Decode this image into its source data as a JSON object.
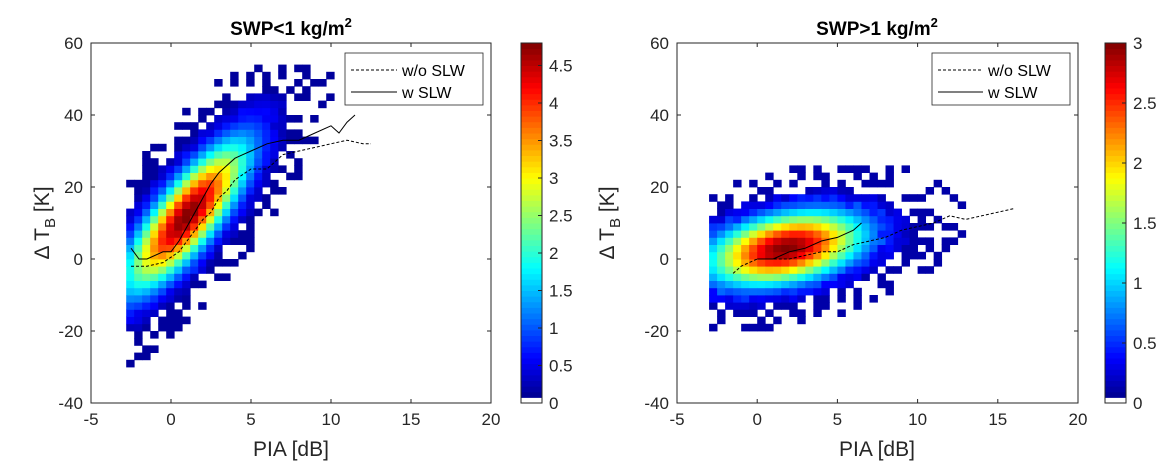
{
  "chart_data": [
    {
      "type": "heatmap",
      "title": "SWP<1 kg/m",
      "title_sup": "2",
      "xlabel": "PIA [dB]",
      "ylabel_delta": "Δ T",
      "ylabel_sub": "B",
      "ylabel_unit": " [K]",
      "xlim": [
        -5,
        20
      ],
      "ylim": [
        -40,
        60
      ],
      "xticks": [
        "-5",
        "0",
        "5",
        "10",
        "15",
        "20"
      ],
      "yticks": [
        "-40",
        "-20",
        "0",
        "20",
        "40",
        "60"
      ],
      "colorbar": {
        "min": 0,
        "max": 4.8,
        "ticks": [
          "0",
          "0.5",
          "1",
          "1.5",
          "2",
          "2.5",
          "3",
          "3.5",
          "4",
          "4.5"
        ],
        "tick_values": [
          0,
          0.5,
          1,
          1.5,
          2,
          2.5,
          3,
          3.5,
          4,
          4.5
        ],
        "colormap": "jet"
      },
      "legend": {
        "position": "top-right",
        "entries": [
          "w/o SLW",
          "w SLW"
        ]
      },
      "density_model": {
        "cx": 1.0,
        "cy": 12,
        "sx": 2.6,
        "sy": 14,
        "rho": 0.8,
        "peak": 4.8,
        "x_range": [
          -2.8,
          19.5
        ],
        "y_range": [
          -30,
          53
        ],
        "cut": 0.22
      },
      "series": [
        {
          "name": "w/o SLW",
          "style": "dashed",
          "x": [
            -2.5,
            -1.5,
            -0.5,
            0.5,
            1.0,
            1.5,
            2.0,
            2.5,
            3.0,
            3.5,
            4.0,
            5.0,
            6.0,
            7.0,
            8.0,
            9.0,
            10.0,
            11.0,
            12.0,
            12.5
          ],
          "y": [
            -2,
            -2,
            -1,
            2,
            5,
            8,
            11,
            13,
            17,
            19,
            22,
            25,
            25,
            29,
            30,
            31,
            32,
            33,
            32,
            32
          ]
        },
        {
          "name": "w SLW",
          "style": "solid",
          "x": [
            -2.5,
            -2.0,
            -1.5,
            -0.5,
            0.0,
            0.5,
            1.0,
            1.5,
            2.0,
            2.5,
            3.0,
            3.5,
            4.0,
            4.5,
            5.0,
            6.0,
            7.0,
            8.0,
            9.0,
            10.0,
            10.5,
            11.0,
            11.5
          ],
          "y": [
            3,
            0,
            0,
            2,
            2,
            5,
            9,
            13,
            17,
            21,
            24,
            26,
            28,
            29,
            30,
            32,
            33,
            33,
            35,
            37,
            35,
            38,
            40
          ]
        }
      ]
    },
    {
      "type": "heatmap",
      "title": "SWP>1 kg/m",
      "title_sup": "2",
      "xlabel": "PIA [dB]",
      "ylabel_delta": "Δ T",
      "ylabel_sub": "B",
      "ylabel_unit": " [K]",
      "xlim": [
        -5,
        20
      ],
      "ylim": [
        -40,
        60
      ],
      "xticks": [
        "-5",
        "0",
        "5",
        "10",
        "15",
        "20"
      ],
      "yticks": [
        "-40",
        "-20",
        "0",
        "20",
        "40",
        "60"
      ],
      "colorbar": {
        "min": 0,
        "max": 3.0,
        "ticks": [
          "0",
          "0.5",
          "1",
          "1.5",
          "2",
          "2.5",
          "3"
        ],
        "tick_values": [
          0,
          0.5,
          1,
          1.5,
          2,
          2.5,
          3
        ],
        "colormap": "jet"
      },
      "legend": {
        "position": "top-right",
        "entries": [
          "w/o SLW",
          "w SLW"
        ]
      },
      "density_model": {
        "cx": 1.8,
        "cy": 3,
        "sx": 3.3,
        "sy": 7,
        "rho": 0.35,
        "peak": 3.0,
        "x_range": [
          -3.0,
          19.5
        ],
        "y_range": [
          -20,
          44
        ],
        "cut": 0.2
      },
      "series": [
        {
          "name": "w/o SLW",
          "style": "dashed",
          "x": [
            -1.5,
            -1.0,
            0.0,
            1.0,
            2.0,
            3.0,
            4.0,
            5.0,
            6.0,
            7.0,
            8.0,
            9.0,
            10.0,
            11.0,
            12.0,
            13.0,
            14.0,
            15.0,
            16.0
          ],
          "y": [
            -4,
            -2,
            0,
            0,
            0,
            1,
            2,
            2,
            4,
            5,
            6,
            8,
            9,
            10,
            12,
            11,
            12,
            13,
            14
          ]
        },
        {
          "name": "w SLW",
          "style": "solid",
          "x": [
            0.0,
            1.0,
            2.0,
            3.0,
            4.0,
            5.0,
            6.0,
            6.5
          ],
          "y": [
            0,
            0,
            2,
            3,
            5,
            6,
            8,
            10
          ]
        }
      ]
    }
  ]
}
